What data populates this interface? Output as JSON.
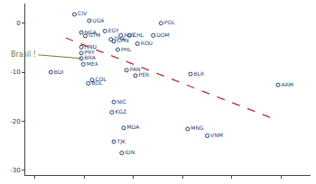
{
  "chart_data": {
    "type": "scatter",
    "x": [
      4.0,
      5.5,
      4.7,
      5.1,
      7.1,
      8.7,
      9.6,
      12.0,
      12.8,
      7.7,
      8.0,
      10.4,
      4.7,
      4.7,
      4.7,
      4.9,
      8.4,
      1.6,
      9.3,
      10.2,
      5.8,
      5.4,
      15.8,
      24.7,
      8.0,
      7.8,
      9.0,
      15.5,
      17.5,
      8.0,
      8.8
    ],
    "values": [
      1.8,
      0.5,
      -1.9,
      -2.6,
      -1.6,
      -2.5,
      -2.5,
      -2.5,
      0,
      -3.3,
      -3.7,
      -4.2,
      -4.9,
      -6.1,
      -7.2,
      -8.4,
      -5.4,
      -10.0,
      -9.6,
      -10.7,
      -11.6,
      -12.3,
      -10.4,
      -12.6,
      -16.1,
      -18.2,
      -21.4,
      -21.6,
      -23.0,
      -24.2,
      -26.5
    ],
    "labels": [
      "CIV",
      "UGA",
      "NGA",
      "GTM",
      "EGY",
      "RUS",
      "CHL",
      "DOM",
      "POL",
      "THA",
      "CHN",
      "ROU",
      "HND",
      "PRY",
      "BRA",
      "MEX",
      "PHL",
      "BDI",
      "PAN",
      "PER",
      "COL",
      "BOL",
      "BLR",
      "ARM",
      "NIC",
      "KGZ",
      "MDA",
      "MNG",
      "VNM",
      "TJK",
      "IDN"
    ],
    "color": "#1f3f73",
    "marker": "circle-open",
    "trend": {
      "x": [
        3.1,
        24.6
      ],
      "values": [
        -3.0,
        -19.8
      ],
      "color": "#b03030",
      "line_style": "dash"
    },
    "annotations": [
      {
        "text": "Brasil !",
        "x": 4.7,
        "y": -7.2,
        "color": "#6b7f2a"
      }
    ],
    "xlim": [
      -1,
      28
    ],
    "xticks": [
      0,
      5,
      10,
      15,
      20,
      25
    ],
    "ylim": [
      -31,
      4
    ],
    "yticks": [
      0,
      -10,
      -20,
      -30
    ],
    "grid": false,
    "tick_labels": "y"
  }
}
